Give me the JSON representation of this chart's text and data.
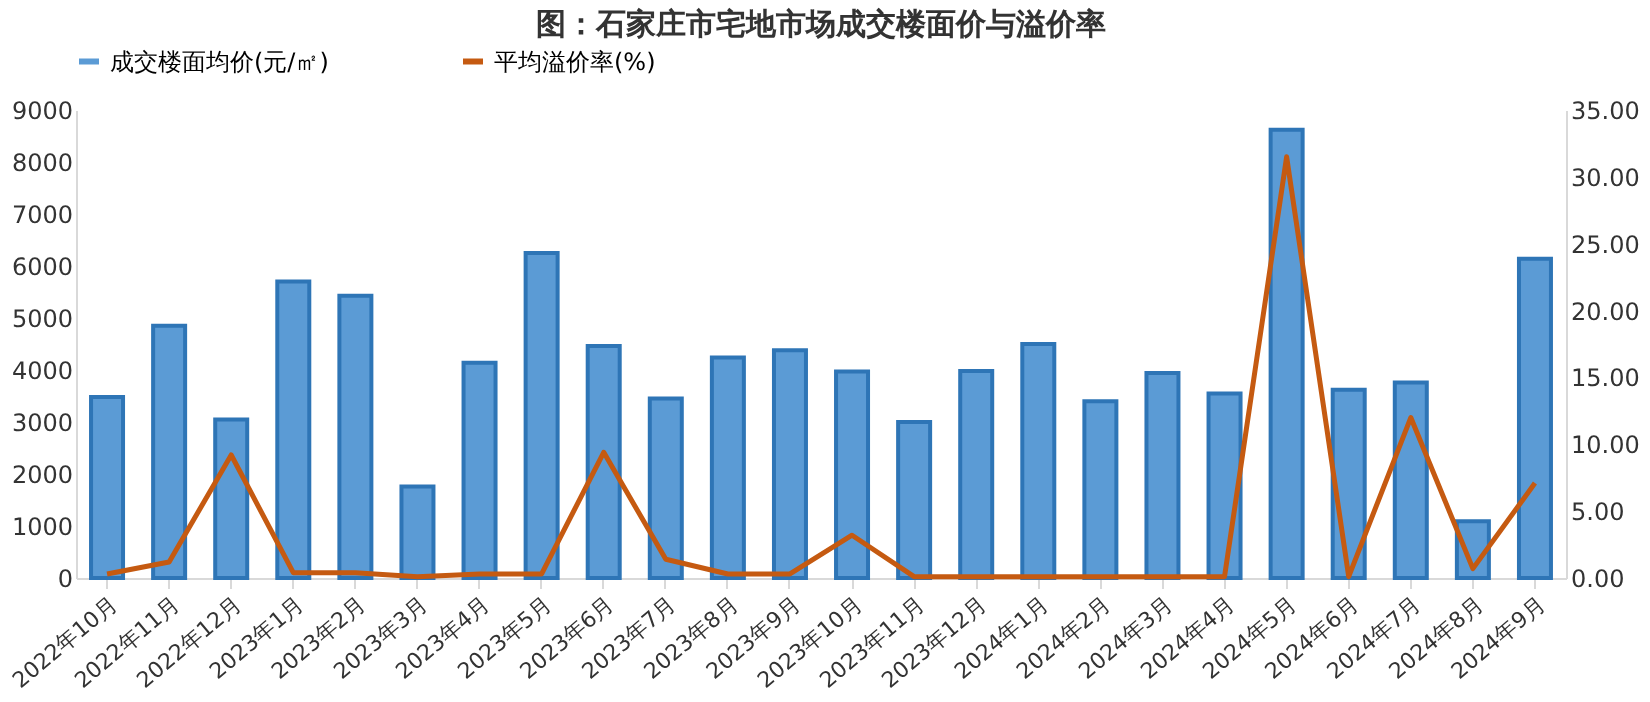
{
  "chart_data": {
    "type": "bar",
    "title": "图：石家庄市宅地市场成交楼面价与溢价率",
    "categories": [
      "2022年10月",
      "2022年11月",
      "2022年12月",
      "2023年1月",
      "2023年2月",
      "2023年3月",
      "2023年4月",
      "2023年5月",
      "2023年6月",
      "2023年7月",
      "2023年8月",
      "2023年9月",
      "2023年10月",
      "2023年11月",
      "2023年12月",
      "2024年1月",
      "2024年2月",
      "2024年3月",
      "2024年4月",
      "2024年5月",
      "2024年6月",
      "2024年7月",
      "2024年8月",
      "2024年9月"
    ],
    "series": [
      {
        "name": "成交楼面均价(元/㎡)",
        "color": "#5b9bd5",
        "values": [
          3480,
          4850,
          3050,
          5700,
          5430,
          1760,
          4140,
          6250,
          4460,
          3450,
          4240,
          4380,
          3970,
          3000,
          3980,
          4500,
          3400,
          3940,
          3550,
          8620,
          3620,
          3760,
          1090,
          6140
        ]
      },
      {
        "name": "平均溢价率(%)",
        "type": "line",
        "axis": "y2",
        "color": "#c55a11",
        "values": [
          0.3,
          1.2,
          9.2,
          0.4,
          0.4,
          0.1,
          0.3,
          0.3,
          9.4,
          1.4,
          0.3,
          0.3,
          3.2,
          0.1,
          0.1,
          0.1,
          0.1,
          0.1,
          0.1,
          31.5,
          0.1,
          12.0,
          0.7,
          7.1
        ]
      }
    ],
    "ylim": [
      0,
      9000
    ],
    "yticks": [
      0,
      1000,
      2000,
      3000,
      4000,
      5000,
      6000,
      7000,
      8000,
      9000
    ],
    "y2lim": [
      0,
      35
    ],
    "y2ticks": [
      {
        "value": 0,
        "label": "0.00"
      },
      {
        "value": 5,
        "label": "5.00"
      },
      {
        "value": 10,
        "label": "10.00"
      },
      {
        "value": 15,
        "label": "15.00"
      },
      {
        "value": 20,
        "label": "20.00"
      },
      {
        "value": 25,
        "label": "25.00"
      },
      {
        "value": 30,
        "label": "30.00"
      },
      {
        "value": 35,
        "label": "35.00"
      }
    ],
    "grid": false,
    "legend": "top",
    "marker": "none",
    "line_style": "solid"
  }
}
